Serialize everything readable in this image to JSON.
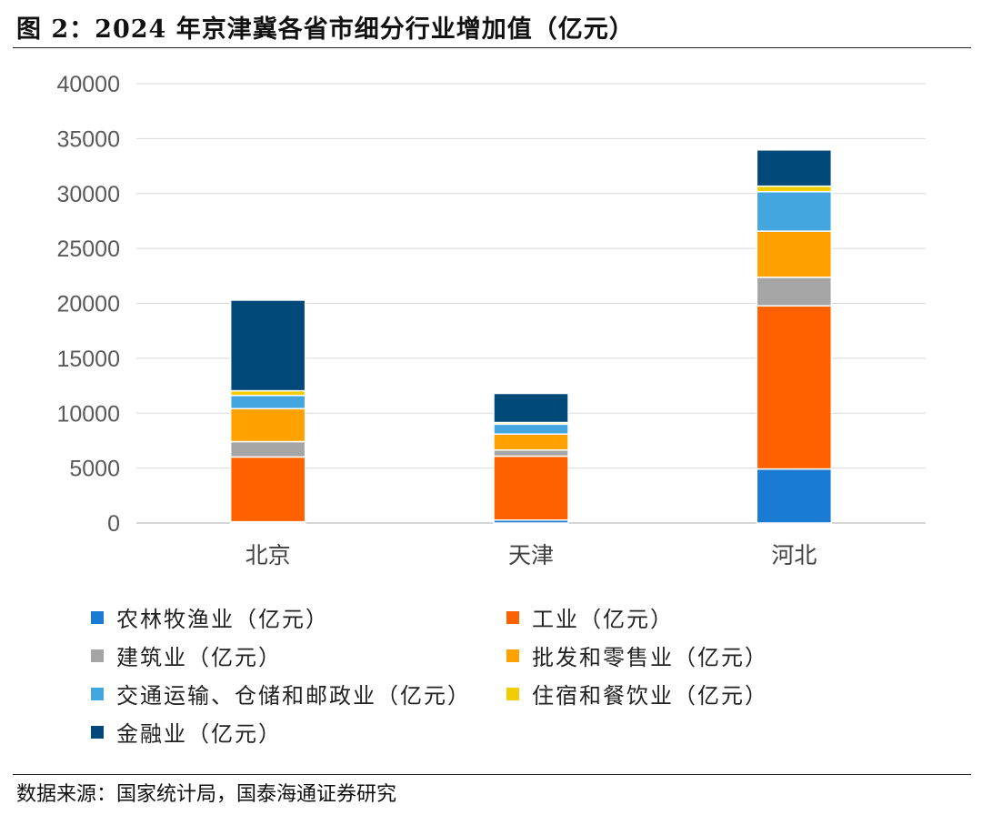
{
  "figure": {
    "title": "图 2：2024 年京津冀各省市细分行业增加值（亿元）",
    "source": "数据来源：国家统计局，国泰海通证券研究"
  },
  "chart_data": {
    "type": "bar",
    "stacked": true,
    "title": "图 2：2024 年京津冀各省市细分行业增加值（亿元）",
    "categories": [
      "北京",
      "天津",
      "河北"
    ],
    "ylim": [
      0,
      40000
    ],
    "yticks": [
      "0",
      "5000",
      "10000",
      "15000",
      "20000",
      "25000",
      "30000",
      "35000",
      "40000"
    ],
    "grid": true,
    "legend_position": "bottom",
    "series": [
      {
        "name": "农林牧渔业（亿元）",
        "color": "#1a7bd2",
        "values": [
          112,
          270,
          4920
        ]
      },
      {
        "name": "工业（亿元）",
        "color": "#ff6100",
        "values": [
          5900,
          5820,
          14850
        ]
      },
      {
        "name": "建筑业（亿元）",
        "color": "#a5a5a5",
        "values": [
          1400,
          560,
          2600
        ]
      },
      {
        "name": "批发和零售业（亿元）",
        "color": "#ffa200",
        "values": [
          3000,
          1450,
          4200
        ]
      },
      {
        "name": "交通运输、仓储和邮政业（亿元）",
        "color": "#44a6df",
        "values": [
          1200,
          900,
          3600
        ]
      },
      {
        "name": "住宿和餐饮业（亿元）",
        "color": "#f0cc00",
        "values": [
          430,
          150,
          500
        ]
      },
      {
        "name": "金融业（亿元）",
        "color": "#004979",
        "values": [
          8250,
          2650,
          3300
        ]
      }
    ]
  }
}
